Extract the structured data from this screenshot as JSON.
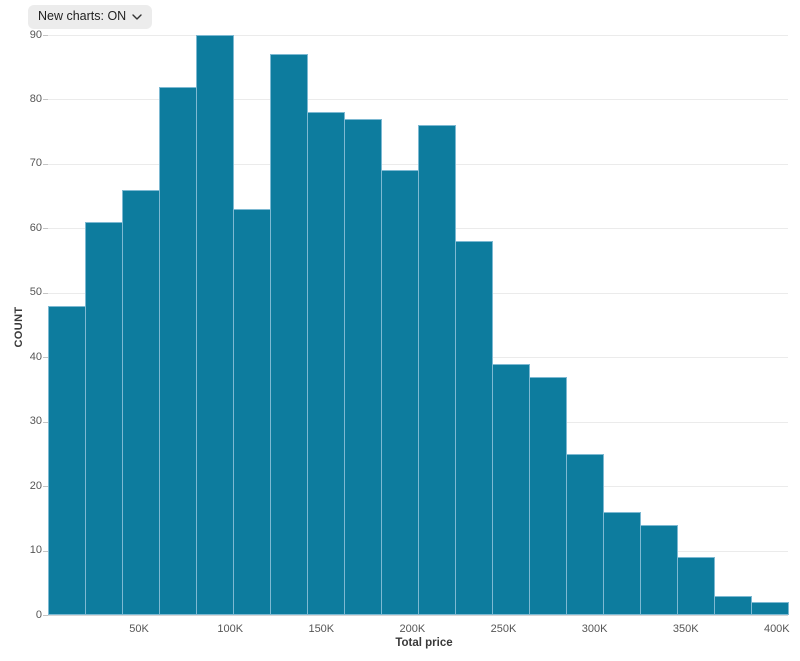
{
  "controls": {
    "new_charts_toggle": {
      "label": "New charts: ON",
      "state": "ON"
    }
  },
  "chart_data": {
    "type": "bar",
    "subtype": "histogram",
    "title": "",
    "xlabel": "Total price",
    "ylabel": "COUNT",
    "ylim": [
      0,
      90
    ],
    "x_range": [
      0,
      400000
    ],
    "bin_size_approx": 20000,
    "grid": true,
    "legend": false,
    "y_ticks": [
      0,
      10,
      20,
      30,
      40,
      50,
      60,
      70,
      80,
      90
    ],
    "x_ticks": [
      {
        "value_k": 50,
        "label": "50K"
      },
      {
        "value_k": 100,
        "label": "100K"
      },
      {
        "value_k": 150,
        "label": "150K"
      },
      {
        "value_k": 200,
        "label": "200K"
      },
      {
        "value_k": 250,
        "label": "250K"
      },
      {
        "value_k": 300,
        "label": "300K"
      },
      {
        "value_k": 350,
        "label": "350K"
      },
      {
        "value_k": 400,
        "label": "400K"
      }
    ],
    "counts": [
      48,
      61,
      66,
      82,
      90,
      63,
      87,
      78,
      77,
      69,
      76,
      58,
      39,
      37,
      25,
      16,
      14,
      9,
      3,
      2
    ],
    "colors": {
      "bar_fill": "#0d7c9e",
      "bar_stroke": "#7db9d2",
      "gridline": "#ebebeb",
      "axis_line": "#d6d6d6",
      "tick_mark": "#c4c4c4",
      "tick_text": "#565656",
      "axis_title_text": "#3a3a3a"
    }
  }
}
